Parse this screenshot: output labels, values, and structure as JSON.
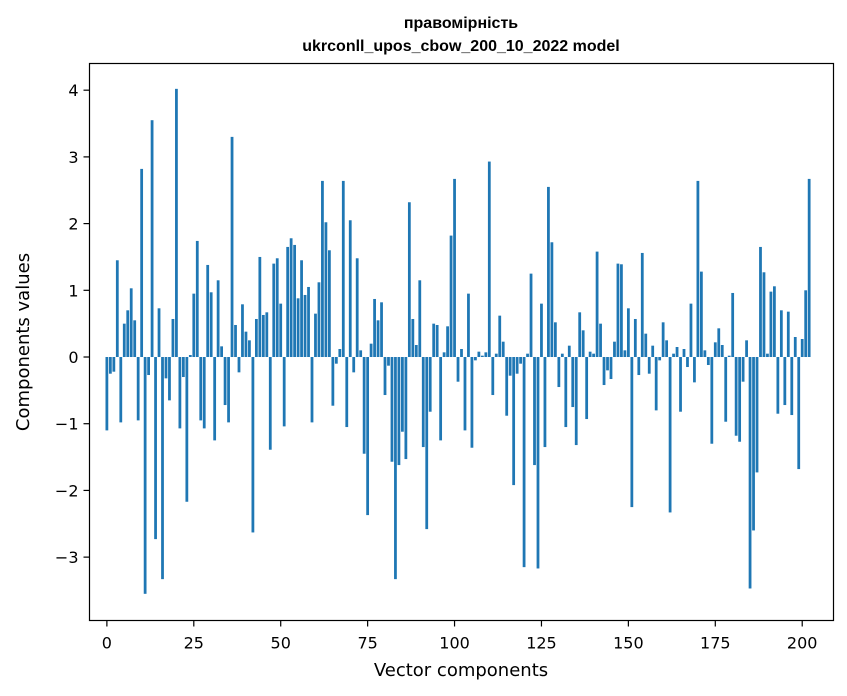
{
  "chart_data": {
    "type": "bar",
    "title_line1": "правомірність",
    "title_line2": "ukrconll_upos_cbow_200_10_2022 model",
    "xlabel": "Vector components",
    "ylabel": "Components values",
    "xlim": [
      -5,
      209
    ],
    "ylim": [
      -3.95,
      4.4
    ],
    "xticks": [
      0,
      25,
      50,
      75,
      100,
      125,
      150,
      175,
      200
    ],
    "yticks": [
      -3,
      -2,
      -1,
      0,
      1,
      2,
      3,
      4
    ],
    "ytick_labels": [
      "−3",
      "−2",
      "−1",
      "0",
      "1",
      "2",
      "3",
      "4"
    ],
    "bar_color": "#1f77b4",
    "grid": false,
    "values": [
      -1.1,
      -0.25,
      -0.22,
      1.45,
      -0.98,
      0.5,
      0.7,
      1.03,
      0.55,
      -0.95,
      2.82,
      -3.55,
      -0.27,
      3.55,
      -2.73,
      0.73,
      -3.33,
      -0.32,
      -0.65,
      0.57,
      4.02,
      -1.07,
      -0.3,
      -2.17,
      0.03,
      0.95,
      1.74,
      -0.95,
      -1.07,
      1.38,
      0.97,
      -1.25,
      1.15,
      0.16,
      -0.72,
      -0.98,
      3.3,
      0.48,
      -0.23,
      0.79,
      0.38,
      0.25,
      -2.63,
      0.57,
      1.5,
      0.63,
      0.67,
      -1.39,
      1.4,
      1.48,
      0.8,
      -1.04,
      1.65,
      1.78,
      1.68,
      0.88,
      1.45,
      0.93,
      1.05,
      -0.98,
      0.65,
      1.12,
      2.64,
      2.02,
      1.6,
      -0.73,
      -0.1,
      0.12,
      2.64,
      -1.05,
      2.05,
      -0.23,
      1.48,
      0.1,
      -1.45,
      -2.37,
      0.2,
      0.87,
      0.55,
      0.82,
      -0.57,
      -0.13,
      -1.57,
      -3.33,
      -1.62,
      -1.12,
      -1.53,
      2.32,
      0.57,
      0.18,
      1.15,
      -1.35,
      -2.58,
      -0.82,
      0.5,
      0.48,
      -1.25,
      0.07,
      0.46,
      1.82,
      2.67,
      -0.37,
      0.12,
      -1.1,
      0.95,
      -1.36,
      -0.05,
      0.08,
      0.02,
      0.07,
      2.93,
      -0.57,
      0.05,
      0.62,
      0.23,
      -0.88,
      -0.28,
      -1.92,
      -0.25,
      -0.1,
      -3.15,
      0.05,
      1.25,
      -1.62,
      -3.17,
      0.8,
      -1.35,
      2.55,
      1.72,
      0.52,
      -0.45,
      0.05,
      -1.05,
      0.17,
      -0.75,
      -1.32,
      0.67,
      0.4,
      -0.93,
      0.08,
      0.05,
      1.58,
      0.5,
      -0.42,
      -0.2,
      -0.33,
      0.23,
      1.4,
      1.39,
      0.1,
      0.73,
      -2.25,
      0.57,
      -0.27,
      1.56,
      0.35,
      -0.25,
      0.17,
      -0.8,
      -0.05,
      0.52,
      0.25,
      -2.33,
      0.05,
      0.15,
      -0.82,
      0.12,
      -0.15,
      0.8,
      -0.38,
      2.64,
      1.28,
      0.1,
      -0.12,
      -1.3,
      0.22,
      0.43,
      0.18,
      -0.97,
      0.02,
      0.96,
      -1.18,
      -1.27,
      -0.37,
      0.25,
      -3.47,
      -2.6,
      -1.73,
      1.65,
      1.27,
      0.05,
      0.98,
      1.06,
      -0.85,
      0.7,
      -0.72,
      0.68,
      -0.87,
      0.3,
      -1.68,
      0.27,
      1.0,
      2.67
    ]
  }
}
